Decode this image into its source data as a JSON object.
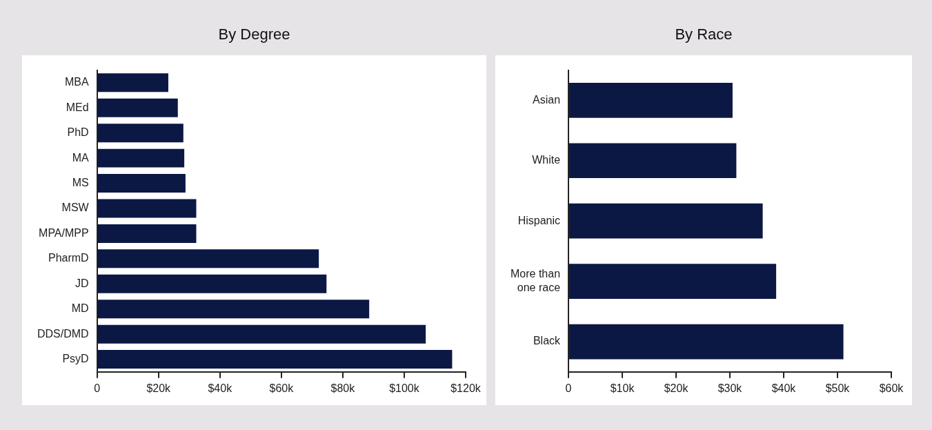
{
  "chart_data": [
    {
      "type": "bar",
      "orientation": "horizontal",
      "title": "By Degree",
      "categories": [
        "MBA",
        "MEd",
        "PhD",
        "MA",
        "MS",
        "MSW",
        "MPA/MPP",
        "PharmD",
        "JD",
        "MD",
        "DDS/DMD",
        "PsyD"
      ],
      "values": [
        23200,
        26300,
        28100,
        28400,
        28800,
        32300,
        32300,
        72200,
        74700,
        88600,
        107000,
        115600
      ],
      "color": "#0c1844",
      "xlim": [
        0,
        120000
      ],
      "xticks": [
        0,
        {
          "value": 20000,
          "label": "$20k"
        },
        {
          "value": 40000,
          "label": "$40k"
        },
        {
          "value": 60000,
          "label": "$60k"
        },
        {
          "value": 80000,
          "label": "$80k"
        },
        {
          "value": 100000,
          "label": "$100k"
        },
        {
          "value": 120000,
          "label": "$120k"
        }
      ]
    },
    {
      "type": "bar",
      "orientation": "horizontal",
      "title": "By Race",
      "categories": [
        "Asian",
        "White",
        "Hispanic",
        "More than one race",
        "Black"
      ],
      "values": [
        30500,
        31200,
        36100,
        38600,
        51100
      ],
      "color": "#0c1844",
      "xlim": [
        0,
        60000
      ],
      "xticks": [
        0,
        {
          "value": 10000,
          "label": "$10k"
        },
        {
          "value": 20000,
          "label": "$20k"
        },
        {
          "value": 30000,
          "label": "$30k"
        },
        {
          "value": 40000,
          "label": "$40k"
        },
        {
          "value": 50000,
          "label": "$50k"
        },
        {
          "value": 60000,
          "label": "$60k"
        }
      ]
    }
  ]
}
